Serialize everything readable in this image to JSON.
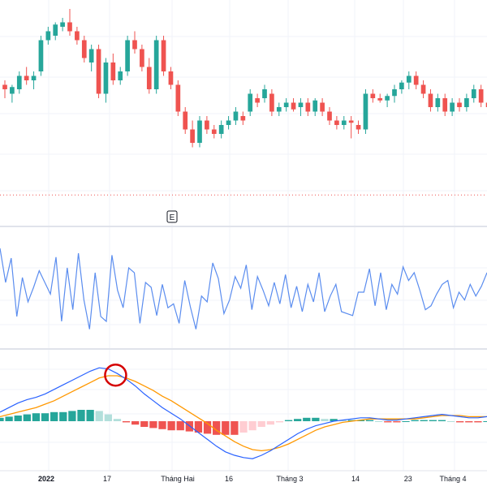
{
  "colors": {
    "up": "#26a69a",
    "down": "#ef5350",
    "hist_up_strong": "#26a69a",
    "hist_up_weak": "#b2dfdb",
    "hist_down_strong": "#ef5350",
    "hist_down_weak": "#ffcdd2",
    "macd_line": "#2962ff",
    "signal_line": "#ff9800",
    "oscillator_line": "#5b8def",
    "dotted_line": "#ef5350",
    "grid": "#f0f3fa",
    "separator": "#e0e3eb",
    "axis_text": "#131722",
    "highlight_circle": "#d50000"
  },
  "event_marker": {
    "label": "E"
  },
  "chart_data": [
    {
      "type": "candlestick",
      "pane": "price",
      "ylim": [
        0,
        100
      ],
      "dotted_level": 13,
      "candles": [
        {
          "o": 62,
          "h": 64,
          "l": 56,
          "c": 60
        },
        {
          "o": 58,
          "h": 62,
          "l": 54,
          "c": 61
        },
        {
          "o": 60,
          "h": 68,
          "l": 58,
          "c": 66
        },
        {
          "o": 66,
          "h": 70,
          "l": 62,
          "c": 64
        },
        {
          "o": 64,
          "h": 68,
          "l": 60,
          "c": 66
        },
        {
          "o": 68,
          "h": 84,
          "l": 66,
          "c": 82
        },
        {
          "o": 82,
          "h": 88,
          "l": 80,
          "c": 86
        },
        {
          "o": 84,
          "h": 90,
          "l": 82,
          "c": 89
        },
        {
          "o": 88,
          "h": 92,
          "l": 86,
          "c": 90
        },
        {
          "o": 90,
          "h": 96,
          "l": 84,
          "c": 86
        },
        {
          "o": 86,
          "h": 88,
          "l": 80,
          "c": 82
        },
        {
          "o": 82,
          "h": 84,
          "l": 72,
          "c": 74
        },
        {
          "o": 72,
          "h": 80,
          "l": 68,
          "c": 78
        },
        {
          "o": 78,
          "h": 80,
          "l": 56,
          "c": 58
        },
        {
          "o": 58,
          "h": 74,
          "l": 54,
          "c": 72
        },
        {
          "o": 72,
          "h": 76,
          "l": 62,
          "c": 64
        },
        {
          "o": 64,
          "h": 70,
          "l": 62,
          "c": 68
        },
        {
          "o": 68,
          "h": 84,
          "l": 66,
          "c": 82
        },
        {
          "o": 82,
          "h": 86,
          "l": 76,
          "c": 78
        },
        {
          "o": 78,
          "h": 80,
          "l": 68,
          "c": 70
        },
        {
          "o": 70,
          "h": 74,
          "l": 58,
          "c": 60
        },
        {
          "o": 60,
          "h": 84,
          "l": 58,
          "c": 82
        },
        {
          "o": 82,
          "h": 84,
          "l": 66,
          "c": 68
        },
        {
          "o": 68,
          "h": 70,
          "l": 60,
          "c": 62
        },
        {
          "o": 62,
          "h": 64,
          "l": 48,
          "c": 50
        },
        {
          "o": 50,
          "h": 52,
          "l": 40,
          "c": 42
        },
        {
          "o": 42,
          "h": 46,
          "l": 34,
          "c": 36
        },
        {
          "o": 36,
          "h": 48,
          "l": 34,
          "c": 46
        },
        {
          "o": 46,
          "h": 48,
          "l": 40,
          "c": 42
        },
        {
          "o": 42,
          "h": 44,
          "l": 38,
          "c": 40
        },
        {
          "o": 40,
          "h": 46,
          "l": 38,
          "c": 44
        },
        {
          "o": 44,
          "h": 48,
          "l": 42,
          "c": 46
        },
        {
          "o": 46,
          "h": 52,
          "l": 44,
          "c": 50
        },
        {
          "o": 48,
          "h": 50,
          "l": 44,
          "c": 46
        },
        {
          "o": 50,
          "h": 60,
          "l": 48,
          "c": 58
        },
        {
          "o": 56,
          "h": 58,
          "l": 52,
          "c": 54
        },
        {
          "o": 56,
          "h": 62,
          "l": 54,
          "c": 60
        },
        {
          "o": 58,
          "h": 60,
          "l": 48,
          "c": 50
        },
        {
          "o": 50,
          "h": 54,
          "l": 48,
          "c": 52
        },
        {
          "o": 52,
          "h": 56,
          "l": 50,
          "c": 54
        },
        {
          "o": 54,
          "h": 56,
          "l": 50,
          "c": 51
        },
        {
          "o": 52,
          "h": 56,
          "l": 48,
          "c": 54
        },
        {
          "o": 54,
          "h": 56,
          "l": 48,
          "c": 50
        },
        {
          "o": 50,
          "h": 56,
          "l": 48,
          "c": 55
        },
        {
          "o": 54,
          "h": 56,
          "l": 48,
          "c": 50
        },
        {
          "o": 50,
          "h": 52,
          "l": 44,
          "c": 46
        },
        {
          "o": 46,
          "h": 48,
          "l": 42,
          "c": 44
        },
        {
          "o": 44,
          "h": 48,
          "l": 42,
          "c": 46
        },
        {
          "o": 46,
          "h": 48,
          "l": 38,
          "c": 45
        },
        {
          "o": 44,
          "h": 46,
          "l": 40,
          "c": 42
        },
        {
          "o": 42,
          "h": 60,
          "l": 40,
          "c": 58
        },
        {
          "o": 58,
          "h": 60,
          "l": 54,
          "c": 56
        },
        {
          "o": 56,
          "h": 58,
          "l": 54,
          "c": 55
        },
        {
          "o": 55,
          "h": 58,
          "l": 52,
          "c": 57
        },
        {
          "o": 57,
          "h": 62,
          "l": 54,
          "c": 60
        },
        {
          "o": 60,
          "h": 64,
          "l": 58,
          "c": 63
        },
        {
          "o": 63,
          "h": 68,
          "l": 60,
          "c": 66
        },
        {
          "o": 66,
          "h": 68,
          "l": 60,
          "c": 62
        },
        {
          "o": 62,
          "h": 64,
          "l": 56,
          "c": 58
        },
        {
          "o": 58,
          "h": 60,
          "l": 50,
          "c": 52
        },
        {
          "o": 52,
          "h": 58,
          "l": 50,
          "c": 56
        },
        {
          "o": 56,
          "h": 58,
          "l": 48,
          "c": 50
        },
        {
          "o": 50,
          "h": 56,
          "l": 48,
          "c": 54
        },
        {
          "o": 54,
          "h": 56,
          "l": 50,
          "c": 52
        },
        {
          "o": 52,
          "h": 58,
          "l": 50,
          "c": 56
        },
        {
          "o": 56,
          "h": 62,
          "l": 54,
          "c": 60
        },
        {
          "o": 60,
          "h": 62,
          "l": 52,
          "c": 54
        },
        {
          "o": 54,
          "h": 56,
          "l": 50,
          "c": 52
        }
      ]
    },
    {
      "type": "line",
      "pane": "oscillator",
      "ylim": [
        0,
        100
      ],
      "values": [
        95,
        60,
        85,
        25,
        65,
        40,
        55,
        72,
        60,
        48,
        86,
        20,
        75,
        32,
        90,
        42,
        12,
        70,
        25,
        20,
        88,
        52,
        34,
        75,
        70,
        18,
        60,
        55,
        26,
        58,
        34,
        38,
        18,
        62,
        35,
        12,
        46,
        40,
        80,
        64,
        28,
        42,
        66,
        54,
        78,
        32,
        66,
        52,
        36,
        60,
        38,
        68,
        34,
        56,
        30,
        58,
        40,
        70,
        30,
        46,
        58,
        30,
        28,
        26,
        50,
        50,
        74,
        36,
        70,
        32,
        58,
        48,
        76,
        62,
        70,
        52,
        32,
        36,
        48,
        58,
        62,
        34,
        50,
        42,
        58,
        46,
        56,
        70
      ],
      "ylabel": ""
    },
    {
      "type": "macd",
      "pane": "macd",
      "ylim": [
        -40,
        60
      ],
      "macd": [
        8,
        12,
        16,
        19,
        21,
        24,
        28,
        32,
        36,
        40,
        44,
        47,
        46,
        42,
        37,
        31,
        24,
        18,
        12,
        7,
        2,
        -4,
        -10,
        -16,
        -22,
        -27,
        -30,
        -32,
        -33,
        -30,
        -26,
        -21,
        -16,
        -11,
        -7,
        -4,
        -2,
        0,
        1,
        2,
        3,
        3,
        2,
        1,
        1,
        2,
        3,
        4,
        5,
        6,
        5,
        4,
        3,
        3,
        4
      ],
      "signal": [
        4,
        6,
        8,
        10,
        12,
        15,
        18,
        22,
        26,
        30,
        34,
        38,
        40,
        40,
        38,
        35,
        31,
        27,
        22,
        18,
        13,
        8,
        3,
        -2,
        -8,
        -13,
        -18,
        -22,
        -25,
        -26,
        -25,
        -23,
        -20,
        -16,
        -12,
        -8,
        -5,
        -3,
        -1,
        0,
        1,
        2,
        2,
        2,
        2,
        2,
        2,
        3,
        4,
        5,
        5,
        5,
        4,
        4,
        4
      ],
      "histogram": [
        3,
        4,
        5,
        6,
        7,
        7,
        8,
        8,
        9,
        10,
        10,
        9,
        6,
        2,
        -1,
        -3,
        -5,
        -6,
        -7,
        -8,
        -8,
        -9,
        -10,
        -11,
        -12,
        -12,
        -12,
        -10,
        -8,
        -5,
        -3,
        -1,
        1,
        2,
        3,
        3,
        2,
        2,
        1,
        1,
        1,
        1,
        0,
        -1,
        -1,
        0,
        1,
        1,
        1,
        1,
        0,
        -1,
        -1,
        -1,
        0
      ],
      "highlight_index": 13
    }
  ],
  "x_axis": {
    "tick_labels": [
      "2022",
      "17",
      "Tháng Hai",
      "16",
      "Tháng 3",
      "14",
      "23",
      "Tháng 4"
    ],
    "tick_fractions": [
      0.095,
      0.22,
      0.365,
      0.47,
      0.595,
      0.73,
      0.838,
      0.93
    ]
  }
}
